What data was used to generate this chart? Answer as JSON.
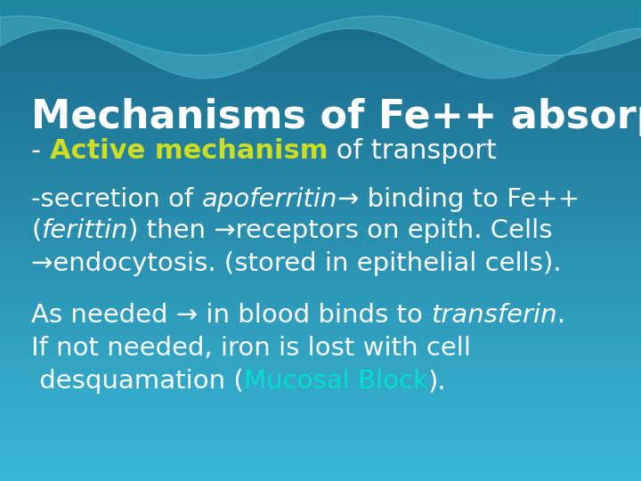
{
  "title": "Mechanisms of Fe++ absorption",
  "title_color": "#FFFFFF",
  "title_fontsize": 32,
  "subtitle_pre": "- ",
  "subtitle_bold": "Active mechanism",
  "subtitle_post": " of transport",
  "subtitle_bold_color": "#CCDD22",
  "subtitle_normal_color": "#FFFFFF",
  "subtitle_fontsize": 22,
  "body_fontsize": 21,
  "body_color": "#FFFFFF",
  "cyan_color": "#00E0D0",
  "bg_color_top_left": "#1a6888",
  "bg_color_bottom_right": "#3ab0d0",
  "wave_dark": "#1a7898",
  "wave_light": "#40c0d0",
  "fig_w": 7.2,
  "fig_h": 5.4,
  "dpi": 100
}
